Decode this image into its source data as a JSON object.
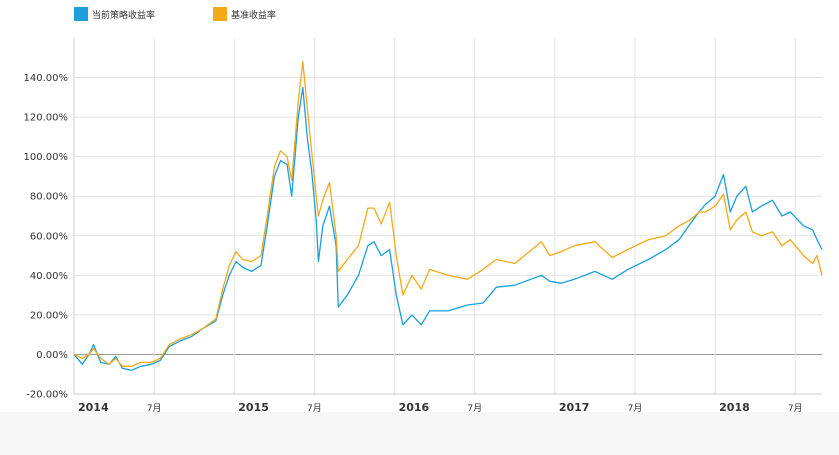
{
  "legend": {
    "items": [
      {
        "label": "当前策略收益率",
        "color": "#1a9fdc"
      },
      {
        "label": "基准收益率",
        "color": "#f2a918"
      }
    ]
  },
  "chart_data": {
    "type": "line",
    "title": "",
    "xlabel": "",
    "ylabel": "",
    "x_range": [
      "2014-01",
      "2018-09"
    ],
    "ylim": [
      -20,
      160
    ],
    "yticks": [
      -20,
      0,
      20,
      40,
      60,
      80,
      100,
      120,
      140
    ],
    "ytick_labels": [
      "-20.00%",
      "0.00%",
      "20.00%",
      "40.00%",
      "60.00%",
      "80.00%",
      "100.00%",
      "120.00%",
      "140.00%"
    ],
    "xticks": [
      {
        "x": "2014-01",
        "label": "2014",
        "major": true
      },
      {
        "x": "2014-07",
        "label": "7月",
        "major": false
      },
      {
        "x": "2015-01",
        "label": "2015",
        "major": true
      },
      {
        "x": "2015-07",
        "label": "7月",
        "major": false
      },
      {
        "x": "2016-01",
        "label": "2016",
        "major": true
      },
      {
        "x": "2016-07",
        "label": "7月",
        "major": false
      },
      {
        "x": "2017-01",
        "label": "2017",
        "major": true
      },
      {
        "x": "2017-07",
        "label": "7月",
        "major": false
      },
      {
        "x": "2018-01",
        "label": "2018",
        "major": true
      },
      {
        "x": "2018-07",
        "label": "7月",
        "major": false
      }
    ],
    "grid": true,
    "legend_position": "top-left",
    "series": [
      {
        "name": "当前策略收益率",
        "color": "#1a9fdc",
        "points": [
          [
            "2014-01-01",
            0
          ],
          [
            "2014-01-20",
            -5
          ],
          [
            "2014-02-05",
            0
          ],
          [
            "2014-02-15",
            5
          ],
          [
            "2014-03-01",
            -4
          ],
          [
            "2014-03-20",
            -5
          ],
          [
            "2014-04-05",
            -1
          ],
          [
            "2014-04-20",
            -7
          ],
          [
            "2014-05-10",
            -8
          ],
          [
            "2014-06-01",
            -6
          ],
          [
            "2014-06-25",
            -5
          ],
          [
            "2014-07-15",
            -3
          ],
          [
            "2014-08-05",
            4
          ],
          [
            "2014-09-01",
            7
          ],
          [
            "2014-09-25",
            9
          ],
          [
            "2014-10-20",
            13
          ],
          [
            "2014-11-20",
            17
          ],
          [
            "2014-12-05",
            30
          ],
          [
            "2014-12-20",
            40
          ],
          [
            "2015-01-05",
            47
          ],
          [
            "2015-01-20",
            44
          ],
          [
            "2015-02-10",
            42
          ],
          [
            "2015-03-01",
            45
          ],
          [
            "2015-03-15",
            65
          ],
          [
            "2015-04-01",
            90
          ],
          [
            "2015-04-15",
            98
          ],
          [
            "2015-04-30",
            96
          ],
          [
            "2015-05-10",
            80
          ],
          [
            "2015-05-25",
            120
          ],
          [
            "2015-06-05",
            135
          ],
          [
            "2015-06-15",
            110
          ],
          [
            "2015-06-25",
            93
          ],
          [
            "2015-07-05",
            68
          ],
          [
            "2015-07-10",
            47
          ],
          [
            "2015-07-20",
            65
          ],
          [
            "2015-08-05",
            75
          ],
          [
            "2015-08-20",
            55
          ],
          [
            "2015-08-25",
            24
          ],
          [
            "2015-09-15",
            30
          ],
          [
            "2015-10-10",
            40
          ],
          [
            "2015-11-01",
            55
          ],
          [
            "2015-11-15",
            57
          ],
          [
            "2015-12-01",
            50
          ],
          [
            "2015-12-20",
            53
          ],
          [
            "2016-01-05",
            30
          ],
          [
            "2016-01-20",
            15
          ],
          [
            "2016-02-10",
            20
          ],
          [
            "2016-03-01",
            15
          ],
          [
            "2016-03-20",
            22
          ],
          [
            "2016-05-01",
            22
          ],
          [
            "2016-06-15",
            25
          ],
          [
            "2016-07-20",
            26
          ],
          [
            "2016-08-20",
            34
          ],
          [
            "2016-10-01",
            35
          ],
          [
            "2016-12-01",
            40
          ],
          [
            "2016-12-20",
            37
          ],
          [
            "2017-01-15",
            36
          ],
          [
            "2017-02-15",
            38
          ],
          [
            "2017-04-01",
            42
          ],
          [
            "2017-05-10",
            38
          ],
          [
            "2017-06-15",
            43
          ],
          [
            "2017-08-01",
            48
          ],
          [
            "2017-09-10",
            53
          ],
          [
            "2017-10-10",
            58
          ],
          [
            "2017-11-05",
            66
          ],
          [
            "2017-11-25",
            72
          ],
          [
            "2017-12-10",
            76
          ],
          [
            "2018-01-01",
            80
          ],
          [
            "2018-01-20",
            91
          ],
          [
            "2018-02-05",
            72
          ],
          [
            "2018-02-20",
            80
          ],
          [
            "2018-03-10",
            85
          ],
          [
            "2018-03-25",
            72
          ],
          [
            "2018-04-15",
            75
          ],
          [
            "2018-05-10",
            78
          ],
          [
            "2018-06-01",
            70
          ],
          [
            "2018-06-20",
            72
          ],
          [
            "2018-07-20",
            65
          ],
          [
            "2018-08-10",
            63
          ],
          [
            "2018-08-20",
            58
          ],
          [
            "2018-09-01",
            53
          ]
        ]
      },
      {
        "name": "基准收益率",
        "color": "#f2a918",
        "points": [
          [
            "2014-01-01",
            0
          ],
          [
            "2014-01-20",
            -2
          ],
          [
            "2014-02-05",
            0
          ],
          [
            "2014-02-15",
            3
          ],
          [
            "2014-03-01",
            -2
          ],
          [
            "2014-03-20",
            -5
          ],
          [
            "2014-04-05",
            -2
          ],
          [
            "2014-04-20",
            -6
          ],
          [
            "2014-05-10",
            -6
          ],
          [
            "2014-06-01",
            -4
          ],
          [
            "2014-06-25",
            -4
          ],
          [
            "2014-07-15",
            -2
          ],
          [
            "2014-08-05",
            5
          ],
          [
            "2014-09-01",
            8
          ],
          [
            "2014-09-25",
            10
          ],
          [
            "2014-10-20",
            13
          ],
          [
            "2014-11-20",
            18
          ],
          [
            "2014-12-05",
            33
          ],
          [
            "2014-12-20",
            45
          ],
          [
            "2015-01-05",
            52
          ],
          [
            "2015-01-20",
            48
          ],
          [
            "2015-02-10",
            47
          ],
          [
            "2015-03-01",
            50
          ],
          [
            "2015-03-15",
            70
          ],
          [
            "2015-04-01",
            95
          ],
          [
            "2015-04-15",
            103
          ],
          [
            "2015-04-30",
            100
          ],
          [
            "2015-05-10",
            88
          ],
          [
            "2015-05-25",
            128
          ],
          [
            "2015-06-05",
            148
          ],
          [
            "2015-06-15",
            125
          ],
          [
            "2015-06-25",
            103
          ],
          [
            "2015-07-05",
            80
          ],
          [
            "2015-07-10",
            70
          ],
          [
            "2015-07-20",
            78
          ],
          [
            "2015-08-05",
            87
          ],
          [
            "2015-08-20",
            60
          ],
          [
            "2015-08-25",
            42
          ],
          [
            "2015-09-15",
            48
          ],
          [
            "2015-10-10",
            55
          ],
          [
            "2015-11-01",
            74
          ],
          [
            "2015-11-15",
            74
          ],
          [
            "2015-12-01",
            66
          ],
          [
            "2015-12-20",
            77
          ],
          [
            "2016-01-05",
            50
          ],
          [
            "2016-01-20",
            30
          ],
          [
            "2016-02-10",
            40
          ],
          [
            "2016-03-01",
            33
          ],
          [
            "2016-03-20",
            43
          ],
          [
            "2016-05-01",
            40
          ],
          [
            "2016-06-15",
            38
          ],
          [
            "2016-07-20",
            43
          ],
          [
            "2016-08-20",
            48
          ],
          [
            "2016-10-01",
            46
          ],
          [
            "2016-12-01",
            57
          ],
          [
            "2016-12-20",
            50
          ],
          [
            "2017-01-15",
            52
          ],
          [
            "2017-02-15",
            55
          ],
          [
            "2017-04-01",
            57
          ],
          [
            "2017-05-10",
            49
          ],
          [
            "2017-06-15",
            53
          ],
          [
            "2017-08-01",
            58
          ],
          [
            "2017-09-10",
            60
          ],
          [
            "2017-10-10",
            65
          ],
          [
            "2017-11-05",
            68
          ],
          [
            "2017-11-25",
            72
          ],
          [
            "2017-12-10",
            72
          ],
          [
            "2018-01-01",
            75
          ],
          [
            "2018-01-20",
            81
          ],
          [
            "2018-02-05",
            63
          ],
          [
            "2018-02-20",
            68
          ],
          [
            "2018-03-10",
            72
          ],
          [
            "2018-03-25",
            62
          ],
          [
            "2018-04-15",
            60
          ],
          [
            "2018-05-10",
            62
          ],
          [
            "2018-06-01",
            55
          ],
          [
            "2018-06-20",
            58
          ],
          [
            "2018-07-20",
            50
          ],
          [
            "2018-08-10",
            46
          ],
          [
            "2018-08-20",
            50
          ],
          [
            "2018-09-01",
            40
          ]
        ]
      }
    ]
  }
}
